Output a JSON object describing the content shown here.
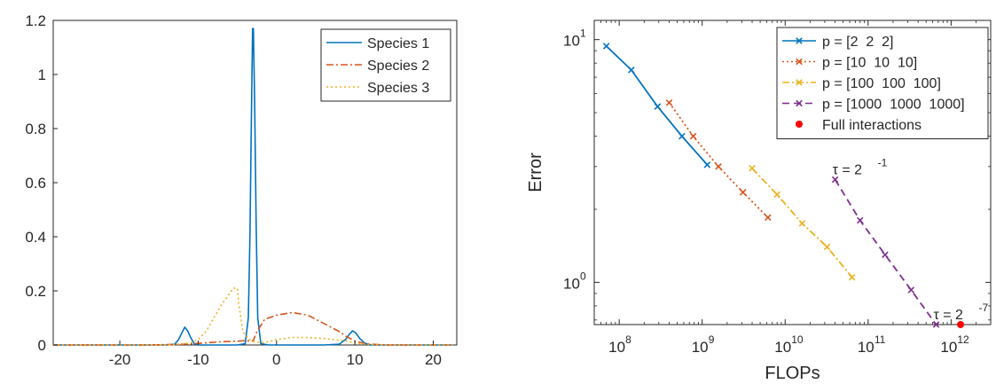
{
  "chart_data": [
    {
      "type": "line",
      "xlabel": "",
      "ylabel": "",
      "xlim": [
        -28.5,
        23
      ],
      "ylim": [
        0,
        1.2
      ],
      "xticks": [
        -20,
        -10,
        0,
        10,
        20
      ],
      "xtick_labels": [
        "-20",
        "-10",
        "0",
        "10",
        "20"
      ],
      "yticks": [
        0,
        0.2,
        0.4,
        0.6,
        0.8,
        1,
        1.2
      ],
      "ytick_labels": [
        "0",
        "0.2",
        "0.4",
        "0.6",
        "0.8",
        "1",
        "1.2"
      ],
      "legend_position": "top-right",
      "series": [
        {
          "name": "Species 1",
          "color": "#0072BD",
          "dash": "solid",
          "x": [
            -28.5,
            -14,
            -13,
            -12.5,
            -12,
            -11.7,
            -11.3,
            -11,
            -10.5,
            -10,
            -8,
            -5,
            -4,
            -3.6,
            -3.4,
            -3.2,
            -3.05,
            -2.95,
            -2.8,
            -2.6,
            -2.4,
            -2,
            -1,
            2,
            6,
            8,
            8.8,
            9.3,
            9.7,
            10.1,
            10.6,
            11.2,
            12,
            14,
            22.5
          ],
          "y": [
            0,
            0,
            0.003,
            0.02,
            0.05,
            0.066,
            0.05,
            0.03,
            0.005,
            0,
            0,
            0,
            0.005,
            0.1,
            0.4,
            0.85,
            1.17,
            1.17,
            0.9,
            0.45,
            0.1,
            0.005,
            0,
            0,
            0,
            0.003,
            0.02,
            0.04,
            0.052,
            0.045,
            0.025,
            0.008,
            0,
            0,
            0
          ]
        },
        {
          "name": "Species 2",
          "color": "#D95319",
          "dash": "dashdot",
          "x": [
            -28.5,
            -16,
            -13,
            -11,
            -9,
            -7,
            -5,
            -4,
            -3.5,
            -3,
            -2.5,
            -1.5,
            -1,
            0,
            2,
            4,
            6,
            8,
            9,
            10,
            11,
            12,
            14,
            22.5
          ],
          "y": [
            0,
            0,
            0.002,
            0.004,
            0.008,
            0.012,
            0.014,
            0.016,
            0.015,
            0.014,
            0.05,
            0.095,
            0.1,
            0.11,
            0.12,
            0.11,
            0.08,
            0.05,
            0.03,
            0.015,
            0.007,
            0.003,
            0,
            0
          ]
        },
        {
          "name": "Species 3",
          "color": "#EDB120",
          "dash": "dotted",
          "x": [
            -28.5,
            -14,
            -12,
            -11,
            -10,
            -9,
            -8,
            -7,
            -6,
            -5.5,
            -5,
            -4.8,
            -4.3,
            -3.5,
            -2.5,
            -1.5,
            -1,
            0,
            2,
            4,
            6,
            8,
            9,
            10,
            11,
            12,
            14,
            22.5
          ],
          "y": [
            0,
            0,
            0.004,
            0.008,
            0.02,
            0.05,
            0.1,
            0.15,
            0.19,
            0.21,
            0.21,
            0.15,
            0.05,
            0.02,
            0.01,
            0.01,
            0.012,
            0.02,
            0.028,
            0.028,
            0.024,
            0.018,
            0.014,
            0.008,
            0.004,
            0.002,
            0,
            0
          ]
        }
      ]
    },
    {
      "type": "line",
      "xlabel": "FLOPs",
      "ylabel": "Error",
      "x_scale": "log",
      "y_scale": "log",
      "xlim": [
        50000000,
        3000000000000
      ],
      "ylim": [
        0.67,
        12
      ],
      "xticks": [
        100000000,
        1000000000,
        10000000000,
        100000000000,
        1000000000000
      ],
      "xtick_labels": [
        {
          "base": "10",
          "exp": "8"
        },
        {
          "base": "10",
          "exp": "9"
        },
        {
          "base": "10",
          "exp": "10"
        },
        {
          "base": "10",
          "exp": "11"
        },
        {
          "base": "10",
          "exp": "12"
        }
      ],
      "yticks": [
        1,
        10
      ],
      "ytick_labels": [
        {
          "base": "10",
          "exp": "0"
        },
        {
          "base": "10",
          "exp": "1"
        }
      ],
      "legend_position": "top-right",
      "series": [
        {
          "name": "p = [2  2  2]",
          "color": "#0072BD",
          "dash": "solid",
          "marker": "x",
          "x": [
            70000000,
            140000000,
            290000000,
            570000000,
            1150000000
          ],
          "y": [
            9.4,
            7.5,
            5.3,
            4.0,
            3.05
          ]
        },
        {
          "name": "p = [10  10  10]",
          "color": "#D95319",
          "dash": "dotted",
          "marker": "x",
          "x": [
            400000000,
            780000000,
            1570000000,
            3100000000,
            6200000000
          ],
          "y": [
            5.5,
            4.0,
            3.0,
            2.35,
            1.85
          ]
        },
        {
          "name": "p = [100  100  100]",
          "color": "#EDB120",
          "dash": "dashdot",
          "marker": "x",
          "x": [
            4000000000,
            8000000000,
            16000000000,
            32000000000,
            64000000000
          ],
          "y": [
            2.95,
            2.3,
            1.75,
            1.4,
            1.05
          ]
        },
        {
          "name": "p = [1000  1000  1000]",
          "color": "#7E2F8E",
          "dash": "dashed",
          "marker": "x",
          "x": [
            40000000000,
            80000000000,
            160000000000,
            330000000000,
            660000000000
          ],
          "y": [
            2.65,
            1.8,
            1.3,
            0.93,
            0.67
          ]
        },
        {
          "name": "Full interactions",
          "color": "#FF0000",
          "dash": "none",
          "marker": "dot",
          "x": [
            1300000000000
          ],
          "y": [
            0.67
          ]
        }
      ],
      "annotations": [
        {
          "text_prefix": "τ = 2",
          "exp": "-1",
          "x": 40000000000,
          "y": 2.65
        },
        {
          "text_prefix": "τ = 2",
          "exp": "-7",
          "x": 660000000000,
          "y": 0.67
        }
      ]
    }
  ]
}
